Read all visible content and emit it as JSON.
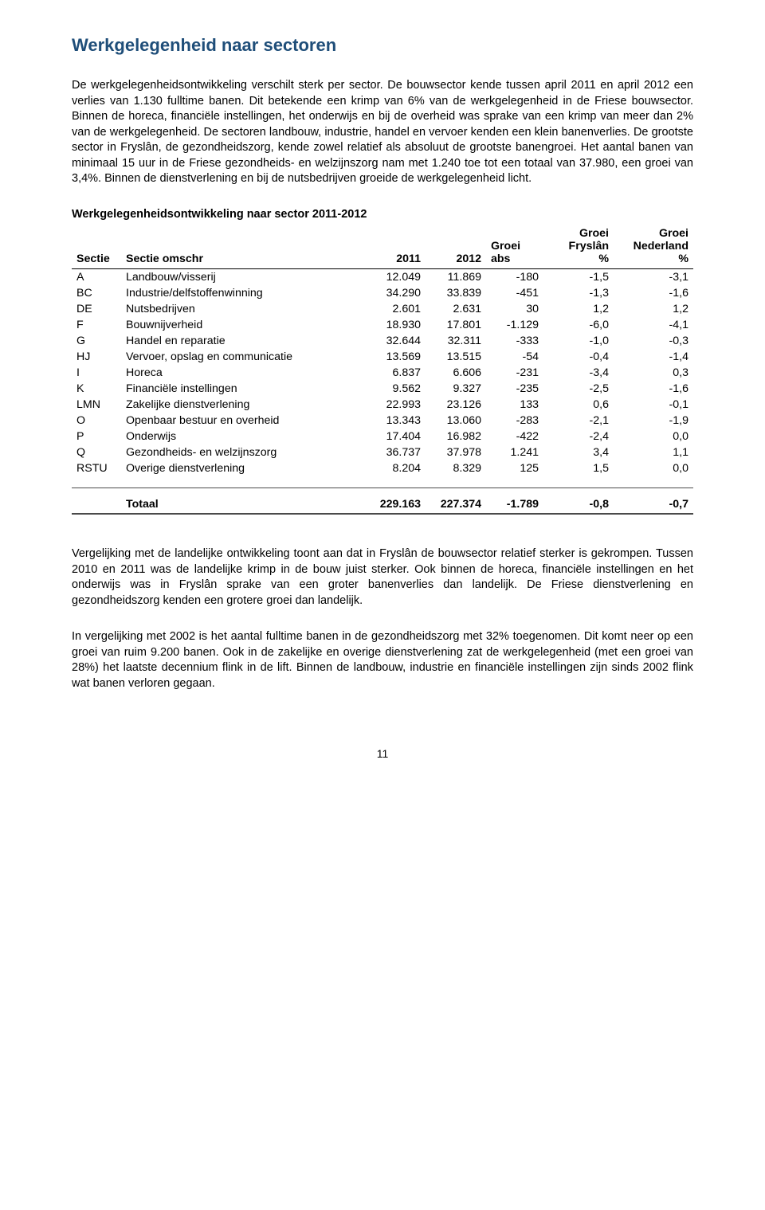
{
  "title": "Werkgelegenheid naar sectoren",
  "paragraph1": "De werkgelegenheidsontwikkeling verschilt sterk per sector. De bouwsector kende tussen april 2011 en april 2012 een verlies van 1.130 fulltime banen. Dit betekende een krimp van 6% van de werkgelegenheid in de Friese bouwsector. Binnen de horeca, financiële instellingen, het onderwijs en bij de overheid was sprake van een krimp van meer dan 2% van de werkgelegenheid. De sectoren landbouw, industrie, handel en vervoer kenden een klein banenverlies. De grootste sector in Fryslân, de gezondheidszorg, kende zowel relatief als absoluut de grootste banengroei. Het aantal banen van minimaal 15 uur in de Friese gezondheids- en welzijnszorg nam met 1.240 toe tot een totaal van 37.980, een groei van 3,4%. Binnen de dienstverlening en bij de nutsbedrijven groeide de werkgelegenheid licht.",
  "table": {
    "caption": "Werkgelegenheidsontwikkeling naar sector 2011-2012",
    "columns": {
      "sectie": "Sectie",
      "omschr": "Sectie omschr",
      "y2011": "2011",
      "y2012": "2012",
      "groei_abs_l1": "Groei",
      "groei_abs_l2": "abs",
      "groei_fr_l1": "Groei",
      "groei_fr_l2": "Fryslân",
      "groei_fr_l3": "%",
      "groei_nl_l1": "Groei",
      "groei_nl_l2": "Nederland",
      "groei_nl_l3": "%"
    },
    "rows": [
      {
        "sectie": "A",
        "omschr": "Landbouw/visserij",
        "y2011": "12.049",
        "y2012": "11.869",
        "abs": "-180",
        "fr": "-1,5",
        "nl": "-3,1"
      },
      {
        "sectie": "BC",
        "omschr": "Industrie/delfstoffenwinning",
        "y2011": "34.290",
        "y2012": "33.839",
        "abs": "-451",
        "fr": "-1,3",
        "nl": "-1,6"
      },
      {
        "sectie": "DE",
        "omschr": "Nutsbedrijven",
        "y2011": "2.601",
        "y2012": "2.631",
        "abs": "30",
        "fr": "1,2",
        "nl": "1,2"
      },
      {
        "sectie": "F",
        "omschr": "Bouwnijverheid",
        "y2011": "18.930",
        "y2012": "17.801",
        "abs": "-1.129",
        "fr": "-6,0",
        "nl": "-4,1"
      },
      {
        "sectie": "G",
        "omschr": "Handel en reparatie",
        "y2011": "32.644",
        "y2012": "32.311",
        "abs": "-333",
        "fr": "-1,0",
        "nl": "-0,3"
      },
      {
        "sectie": "HJ",
        "omschr": "Vervoer, opslag en communicatie",
        "y2011": "13.569",
        "y2012": "13.515",
        "abs": "-54",
        "fr": "-0,4",
        "nl": "-1,4"
      },
      {
        "sectie": "I",
        "omschr": "Horeca",
        "y2011": "6.837",
        "y2012": "6.606",
        "abs": "-231",
        "fr": "-3,4",
        "nl": "0,3"
      },
      {
        "sectie": "K",
        "omschr": "Financiële instellingen",
        "y2011": "9.562",
        "y2012": "9.327",
        "abs": "-235",
        "fr": "-2,5",
        "nl": "-1,6"
      },
      {
        "sectie": "LMN",
        "omschr": "Zakelijke dienstverlening",
        "y2011": "22.993",
        "y2012": "23.126",
        "abs": "133",
        "fr": "0,6",
        "nl": "-0,1"
      },
      {
        "sectie": "O",
        "omschr": "Openbaar bestuur en overheid",
        "y2011": "13.343",
        "y2012": "13.060",
        "abs": "-283",
        "fr": "-2,1",
        "nl": "-1,9"
      },
      {
        "sectie": "P",
        "omschr": "Onderwijs",
        "y2011": "17.404",
        "y2012": "16.982",
        "abs": "-422",
        "fr": "-2,4",
        "nl": "0,0"
      },
      {
        "sectie": "Q",
        "omschr": "Gezondheids- en welzijnszorg",
        "y2011": "36.737",
        "y2012": "37.978",
        "abs": "1.241",
        "fr": "3,4",
        "nl": "1,1"
      },
      {
        "sectie": "RSTU",
        "omschr": "Overige dienstverlening",
        "y2011": "8.204",
        "y2012": "8.329",
        "abs": "125",
        "fr": "1,5",
        "nl": "0,0"
      }
    ],
    "total": {
      "label": "Totaal",
      "y2011": "229.163",
      "y2012": "227.374",
      "abs": "-1.789",
      "fr": "-0,8",
      "nl": "-0,7"
    }
  },
  "paragraph2": "Vergelijking met de landelijke ontwikkeling toont aan dat in Fryslân de bouwsector relatief sterker is gekrompen. Tussen 2010 en 2011 was de landelijke krimp in de bouw juist sterker. Ook binnen de horeca, financiële instellingen en het onderwijs was in Fryslân sprake van een groter banenverlies dan landelijk. De Friese dienstverlening en gezondheidszorg kenden een grotere groei dan landelijk.",
  "paragraph3": "In vergelijking met 2002 is het aantal fulltime banen in de gezondheidszorg met 32% toegenomen. Dit komt neer op een groei van ruim 9.200 banen. Ook in de zakelijke en overige dienstverlening zat de werkgelegenheid (met een groei van 28%)  het laatste decennium flink in de lift. Binnen de landbouw, industrie en financiële instellingen zijn sinds 2002 flink wat banen verloren gegaan.",
  "page_number": "11",
  "title_color": "#1f4e79"
}
